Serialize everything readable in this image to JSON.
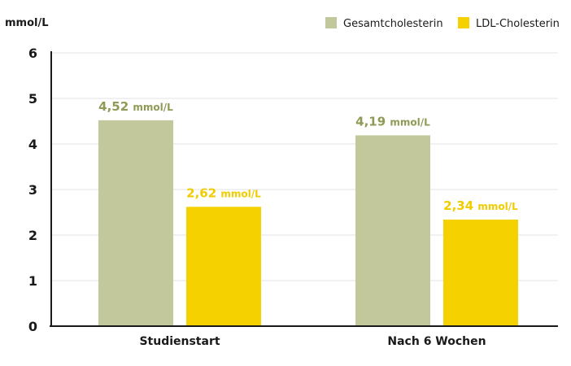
{
  "colors": {
    "gesamt": "#c3c89c",
    "gesamt_label": "#8f9a55",
    "ldl": "#f5d100",
    "ldl_label": "#f0cc00",
    "grid": "#e3e3e3",
    "axis": "#1a1a1a"
  },
  "chart_data": {
    "type": "bar",
    "ylabel": "mmol/L",
    "ylim": [
      0,
      6
    ],
    "yticks": [
      "0",
      "1",
      "2",
      "3",
      "4",
      "5",
      "6"
    ],
    "categories": [
      "Studienstart",
      "Nach 6 Wochen"
    ],
    "legend_position": "top-right",
    "grid": true,
    "series": [
      {
        "name": "Gesamtcholesterin",
        "values": [
          4.52,
          4.19
        ],
        "labels": [
          {
            "num": "4,52",
            "unit": "mmol/L"
          },
          {
            "num": "4,19",
            "unit": "mmol/L"
          }
        ]
      },
      {
        "name": "LDL-Cholesterin",
        "values": [
          2.62,
          2.34
        ],
        "labels": [
          {
            "num": "2,62",
            "unit": "mmol/L"
          },
          {
            "num": "2,34",
            "unit": "mmol/L"
          }
        ]
      }
    ]
  }
}
